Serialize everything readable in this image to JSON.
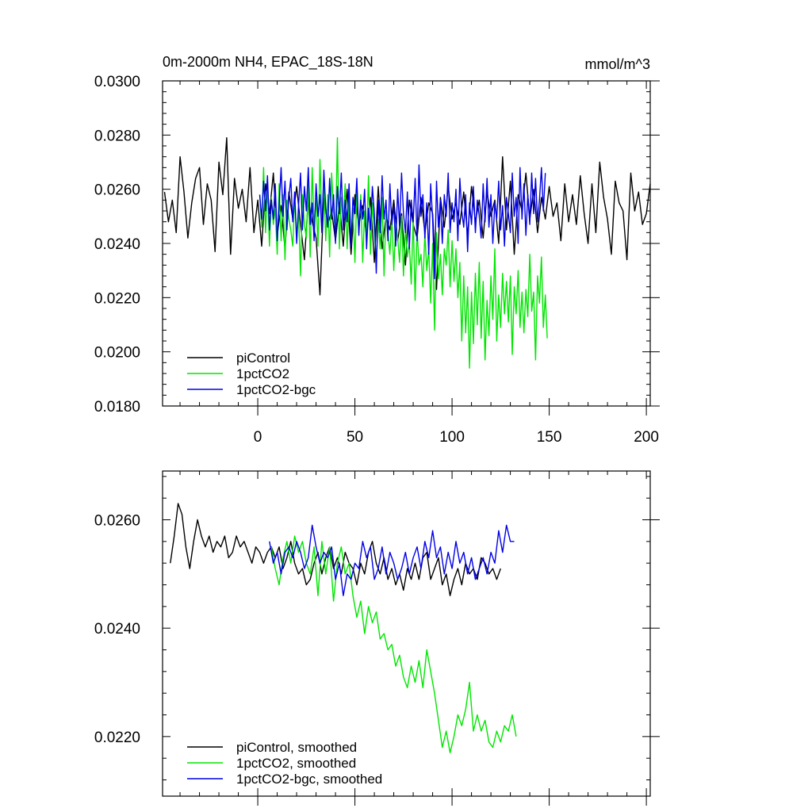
{
  "chart_data": [
    {
      "type": "line",
      "title": "0m-2000m NH4, EPAC_18S-18N",
      "units": "mmol/m^3",
      "xlabel": "",
      "ylabel": "",
      "xlim": [
        -49,
        202
      ],
      "ylim": [
        0.018,
        0.03
      ],
      "yticks": [
        "0.0180",
        "0.0200",
        "0.0220",
        "0.0240",
        "0.0260",
        "0.0280",
        "0.0300"
      ],
      "xticks": [
        "0",
        "50",
        "100",
        "150",
        "200"
      ],
      "legend": [
        "piControl",
        "1pctCO2",
        "1pctCO2-bgc"
      ],
      "series": [
        {
          "name": "piControl",
          "color": "#000000",
          "x_start": -48,
          "x_step": 2,
          "values": [
            0.0259,
            0.0248,
            0.0256,
            0.0244,
            0.0272,
            0.0259,
            0.0242,
            0.0255,
            0.0264,
            0.0268,
            0.0247,
            0.0262,
            0.0256,
            0.0237,
            0.027,
            0.0258,
            0.0279,
            0.0236,
            0.0264,
            0.0253,
            0.026,
            0.0248,
            0.0268,
            0.0244,
            0.0256,
            0.0239,
            0.0262,
            0.0251,
            0.0266,
            0.0243,
            0.0254,
            0.0238,
            0.0259,
            0.0249,
            0.0261,
            0.0247,
            0.0234,
            0.0256,
            0.0248,
            0.0242,
            0.0221,
            0.0258,
            0.0247,
            0.0252,
            0.0241,
            0.0255,
            0.0239,
            0.026,
            0.0236,
            0.0258,
            0.0247,
            0.0254,
            0.0243,
            0.0257,
            0.0233,
            0.0261,
            0.0238,
            0.025,
            0.0245,
            0.0256,
            0.0241,
            0.0251,
            0.0232,
            0.0256,
            0.0247,
            0.0242,
            0.0257,
            0.0244,
            0.0255,
            0.0251,
            0.0223,
            0.0257,
            0.0246,
            0.0261,
            0.0249,
            0.0255,
            0.0247,
            0.0259,
            0.0243,
            0.0261,
            0.0248,
            0.0256,
            0.0242,
            0.0259,
            0.025,
            0.0256,
            0.024,
            0.0272,
            0.0245,
            0.0263,
            0.0236,
            0.0258,
            0.0252,
            0.0266,
            0.0249,
            0.026,
            0.0244,
            0.0257,
            0.0249,
            0.0261,
            0.025,
            0.0255,
            0.0241,
            0.0262,
            0.0248,
            0.0258,
            0.0247,
            0.0265,
            0.0251,
            0.024,
            0.0262,
            0.0244,
            0.027,
            0.0257,
            0.0249,
            0.0236,
            0.0263,
            0.0255,
            0.0252,
            0.0234,
            0.0266,
            0.0252,
            0.0259,
            0.0247,
            0.0251,
            0.0262
          ]
        },
        {
          "name": "1pctCO2",
          "color": "#00e600",
          "x_start": 1,
          "x_step": 1,
          "values": [
            0.0258,
            0.0246,
            0.0268,
            0.0244,
            0.0261,
            0.0239,
            0.0257,
            0.0247,
            0.0253,
            0.0236,
            0.0262,
            0.0241,
            0.0258,
            0.0234,
            0.0256,
            0.0249,
            0.0245,
            0.0239,
            0.0257,
            0.0243,
            0.0251,
            0.0228,
            0.0258,
            0.0247,
            0.0242,
            0.0262,
            0.0235,
            0.0268,
            0.0246,
            0.0257,
            0.0239,
            0.0271,
            0.0248,
            0.0262,
            0.0241,
            0.0258,
            0.0235,
            0.0266,
            0.0252,
            0.0244,
            0.0279,
            0.0238,
            0.0257,
            0.0249,
            0.0262,
            0.0238,
            0.0257,
            0.0241,
            0.0253,
            0.0233,
            0.026,
            0.0244,
            0.0258,
            0.0233,
            0.0252,
            0.0241,
            0.0265,
            0.0236,
            0.0255,
            0.0244,
            0.0233,
            0.0249,
            0.0238,
            0.0257,
            0.0228,
            0.0252,
            0.0244,
            0.0236,
            0.025,
            0.023,
            0.0247,
            0.0242,
            0.0233,
            0.025,
            0.0228,
            0.0246,
            0.0235,
            0.024,
            0.0225,
            0.025,
            0.0219,
            0.0245,
            0.0232,
            0.0236,
            0.0224,
            0.0244,
            0.023,
            0.0238,
            0.0218,
            0.024,
            0.0208,
            0.0244,
            0.0227,
            0.0236,
            0.0221,
            0.0238,
            0.0232,
            0.0245,
            0.0224,
            0.0241,
            0.0226,
            0.0238,
            0.022,
            0.0233,
            0.0204,
            0.0228,
            0.0207,
            0.0224,
            0.0194,
            0.0222,
            0.0203,
            0.0229,
            0.021,
            0.0233,
            0.0205,
            0.0226,
            0.0197,
            0.0219,
            0.0206,
            0.0228,
            0.0212,
            0.0238,
            0.0204,
            0.0221,
            0.0209,
            0.0229,
            0.0214,
            0.0226,
            0.0211,
            0.0228,
            0.0199,
            0.0224,
            0.0214,
            0.023,
            0.0209,
            0.0222,
            0.0207,
            0.0223,
            0.0213,
            0.0236,
            0.0215,
            0.0222,
            0.0197,
            0.0228,
            0.0218,
            0.0235,
            0.0209,
            0.0221,
            0.0205
          ]
        },
        {
          "name": "1pctCO2-bgc",
          "color": "#0000e6",
          "x_start": 1,
          "x_step": 1,
          "values": [
            0.0258,
            0.0249,
            0.0263,
            0.0252,
            0.0265,
            0.0245,
            0.0256,
            0.0249,
            0.0262,
            0.0241,
            0.0254,
            0.0268,
            0.025,
            0.0263,
            0.0245,
            0.0257,
            0.0264,
            0.0248,
            0.0259,
            0.024,
            0.0254,
            0.0266,
            0.0245,
            0.0261,
            0.0252,
            0.0268,
            0.0247,
            0.0255,
            0.0241,
            0.0262,
            0.025,
            0.0258,
            0.0244,
            0.0267,
            0.0253,
            0.0246,
            0.0264,
            0.0249,
            0.0258,
            0.024,
            0.0261,
            0.0251,
            0.0266,
            0.0245,
            0.0256,
            0.0248,
            0.0262,
            0.0239,
            0.0257,
            0.0251,
            0.0264,
            0.0243,
            0.0256,
            0.0249,
            0.026,
            0.0238,
            0.0253,
            0.0245,
            0.0261,
            0.0251,
            0.0229,
            0.0256,
            0.0244,
            0.0265,
            0.0249,
            0.0256,
            0.0241,
            0.0262,
            0.0247,
            0.0254,
            0.0239,
            0.026,
            0.0246,
            0.0266,
            0.0251,
            0.0244,
            0.0259,
            0.0238,
            0.0256,
            0.0248,
            0.0264,
            0.0241,
            0.0269,
            0.025,
            0.0258,
            0.0242,
            0.0255,
            0.0236,
            0.0262,
            0.0249,
            0.0227,
            0.0263,
            0.0246,
            0.0256,
            0.024,
            0.0258,
            0.025,
            0.0266,
            0.0244,
            0.0255,
            0.0248,
            0.026,
            0.0241,
            0.0264,
            0.0252,
            0.0246,
            0.0258,
            0.0237,
            0.0255,
            0.0247,
            0.0261,
            0.0244,
            0.0256,
            0.025,
            0.0242,
            0.0262,
            0.0248,
            0.0264,
            0.0246,
            0.0258,
            0.024,
            0.0255,
            0.0249,
            0.0263,
            0.0245,
            0.0254,
            0.0239,
            0.0257,
            0.0251,
            0.0244,
            0.0266,
            0.025,
            0.0257,
            0.024,
            0.0268,
            0.0249,
            0.0262,
            0.0243,
            0.0258,
            0.0247,
            0.0266,
            0.0251,
            0.0264,
            0.0248,
            0.0256,
            0.0268,
            0.0252,
            0.0266
          ]
        }
      ]
    },
    {
      "type": "line",
      "title": "",
      "xlabel": "",
      "ylabel": "",
      "xlim": [
        -49,
        202
      ],
      "ylim": [
        0.0209,
        0.0269
      ],
      "yticks": [
        "0.0220",
        "0.0240",
        "0.0260"
      ],
      "xticks": [],
      "legend": [
        "piControl, smoothed",
        "1pctCO2, smoothed",
        "1pctCO2-bgc, smoothed"
      ],
      "series": [
        {
          "name": "piControl, smoothed",
          "color": "#000000",
          "x_start": -45,
          "x_step": 2,
          "values": [
            0.0252,
            0.0257,
            0.0263,
            0.0261,
            0.0255,
            0.0251,
            0.0256,
            0.026,
            0.0257,
            0.0255,
            0.0257,
            0.0254,
            0.0256,
            0.0255,
            0.0257,
            0.0253,
            0.0254,
            0.0257,
            0.0255,
            0.0256,
            0.0254,
            0.0252,
            0.0255,
            0.0254,
            0.0252,
            0.0254,
            0.0255,
            0.0253,
            0.0255,
            0.0251,
            0.0253,
            0.0256,
            0.0252,
            0.025,
            0.0251,
            0.0248,
            0.0249,
            0.0252,
            0.0254,
            0.025,
            0.0253,
            0.0255,
            0.0251,
            0.0253,
            0.025,
            0.0254,
            0.0252,
            0.0251,
            0.0248,
            0.0252,
            0.025,
            0.0254,
            0.0256,
            0.0252,
            0.025,
            0.0253,
            0.0249,
            0.0251,
            0.0248,
            0.025,
            0.0247,
            0.0251,
            0.0249,
            0.0252,
            0.0249,
            0.0253,
            0.0254,
            0.0249,
            0.0251,
            0.0253,
            0.0248,
            0.025,
            0.0246,
            0.0249,
            0.0251,
            0.0248,
            0.0252,
            0.025,
            0.0251,
            0.0249,
            0.0253,
            0.0252,
            0.025,
            0.0251,
            0.0249,
            0.0251
          ]
        },
        {
          "name": "1pctCO2, smoothed",
          "color": "#00e600",
          "x_start": 7,
          "x_step": 2,
          "values": [
            0.0255,
            0.0251,
            0.0248,
            0.0253,
            0.0256,
            0.0252,
            0.0257,
            0.0254,
            0.0256,
            0.0252,
            0.025,
            0.0255,
            0.0246,
            0.0256,
            0.025,
            0.0255,
            0.0245,
            0.0252,
            0.0255,
            0.025,
            0.0252,
            0.0246,
            0.0242,
            0.0245,
            0.0239,
            0.0244,
            0.0241,
            0.0243,
            0.0238,
            0.0239,
            0.0236,
            0.0237,
            0.0233,
            0.0235,
            0.0231,
            0.0229,
            0.0233,
            0.023,
            0.0234,
            0.0229,
            0.0236,
            0.0232,
            0.0228,
            0.0223,
            0.0218,
            0.0221,
            0.0217,
            0.022,
            0.0224,
            0.0222,
            0.0225,
            0.023,
            0.0221,
            0.0224,
            0.0221,
            0.0223,
            0.0219,
            0.0218,
            0.0221,
            0.0219,
            0.0222,
            0.0221,
            0.0224,
            0.022
          ]
        },
        {
          "name": "1pctCO2-bgc, smoothed",
          "color": "#0000e6",
          "x_start": 6,
          "x_step": 2,
          "values": [
            0.0256,
            0.0252,
            0.0254,
            0.025,
            0.0254,
            0.0255,
            0.0253,
            0.0256,
            0.0254,
            0.0251,
            0.0253,
            0.0259,
            0.0255,
            0.0252,
            0.0254,
            0.0253,
            0.0255,
            0.0249,
            0.0252,
            0.0246,
            0.025,
            0.0249,
            0.0252,
            0.0251,
            0.0256,
            0.0253,
            0.0255,
            0.0249,
            0.0251,
            0.0255,
            0.025,
            0.0254,
            0.0252,
            0.0249,
            0.0251,
            0.0254,
            0.025,
            0.0253,
            0.0255,
            0.0251,
            0.0256,
            0.0253,
            0.0258,
            0.0253,
            0.0255,
            0.025,
            0.0254,
            0.0251,
            0.0256,
            0.0252,
            0.0254,
            0.025,
            0.0253,
            0.0249,
            0.0251,
            0.0253,
            0.025,
            0.0254,
            0.0252,
            0.0258,
            0.0254,
            0.0259,
            0.0256,
            0.0256
          ]
        }
      ]
    }
  ]
}
